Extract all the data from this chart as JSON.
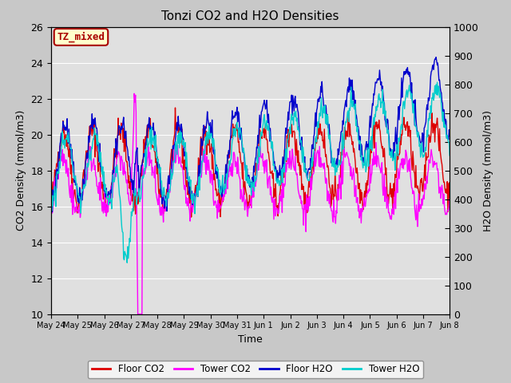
{
  "title": "Tonzi CO2 and H2O Densities",
  "xlabel": "Time",
  "ylabel_left": "CO2 Density (mmol/m3)",
  "ylabel_right": "H2O Density (mmol/m3)",
  "ylim_left": [
    10,
    26
  ],
  "ylim_right": [
    0,
    1000
  ],
  "annotation_text": "TZ_mixed",
  "annotation_facecolor": "#ffffcc",
  "annotation_edgecolor": "#aa0000",
  "annotation_textcolor": "#aa0000",
  "fig_facecolor": "#c8c8c8",
  "plot_facecolor": "#e0e0e0",
  "legend_entries": [
    "Floor CO2",
    "Tower CO2",
    "Floor H2O",
    "Tower H2O"
  ],
  "line_colors": [
    "#dd0000",
    "#ff00ff",
    "#0000cc",
    "#00cccc"
  ],
  "xtick_labels": [
    "May 24",
    "May 25",
    "May 26",
    "May 27",
    "May 28",
    "May 29",
    "May 30",
    "May 31",
    "Jun 1",
    "Jun 2",
    "Jun 3",
    "Jun 4",
    "Jun 5",
    "Jun 6",
    "Jun 7",
    "Jun 8"
  ],
  "n_points": 672,
  "seed": 42
}
